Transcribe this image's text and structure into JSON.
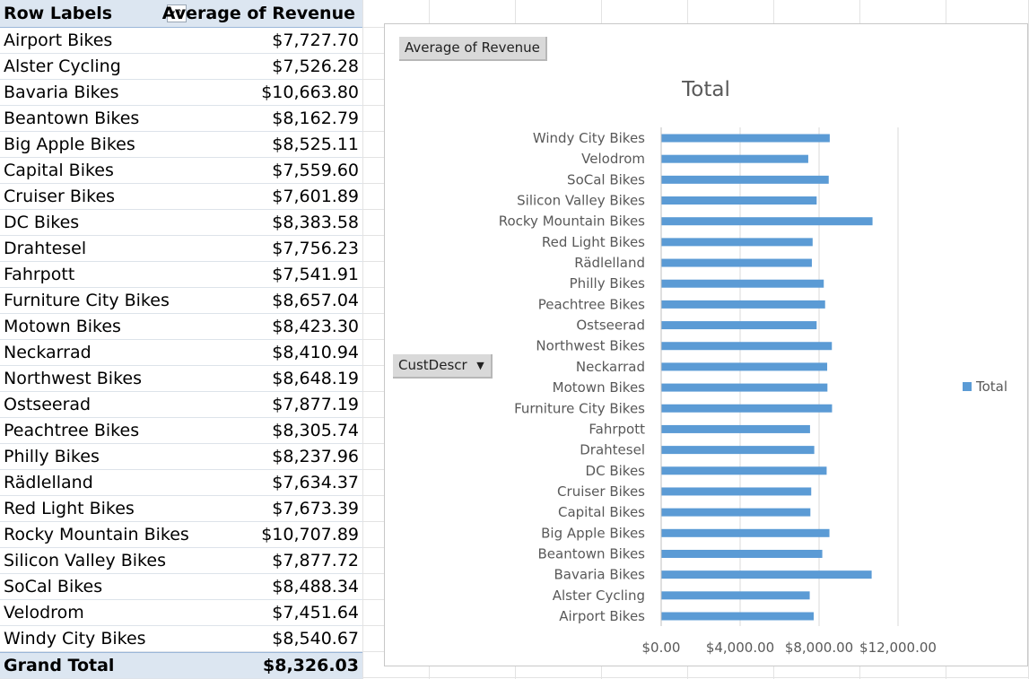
{
  "pivot": {
    "header_row_label": "Row Labels",
    "header_value_label": "Average of Revenue",
    "rows": [
      {
        "label": "Airport Bikes",
        "value": "$7,727.70"
      },
      {
        "label": "Alster Cycling",
        "value": "$7,526.28"
      },
      {
        "label": "Bavaria Bikes",
        "value": "$10,663.80"
      },
      {
        "label": "Beantown Bikes",
        "value": "$8,162.79"
      },
      {
        "label": "Big Apple Bikes",
        "value": "$8,525.11"
      },
      {
        "label": "Capital Bikes",
        "value": "$7,559.60"
      },
      {
        "label": "Cruiser Bikes",
        "value": "$7,601.89"
      },
      {
        "label": "DC Bikes",
        "value": "$8,383.58"
      },
      {
        "label": "Drahtesel",
        "value": "$7,756.23"
      },
      {
        "label": "Fahrpott",
        "value": "$7,541.91"
      },
      {
        "label": "Furniture City Bikes",
        "value": "$8,657.04"
      },
      {
        "label": "Motown Bikes",
        "value": "$8,423.30"
      },
      {
        "label": "Neckarrad",
        "value": "$8,410.94"
      },
      {
        "label": "Northwest Bikes",
        "value": "$8,648.19"
      },
      {
        "label": "Ostseerad",
        "value": "$7,877.19"
      },
      {
        "label": "Peachtree Bikes",
        "value": "$8,305.74"
      },
      {
        "label": "Philly Bikes",
        "value": "$8,237.96"
      },
      {
        "label": "Rädlelland",
        "value": "$7,634.37"
      },
      {
        "label": "Red Light Bikes",
        "value": "$7,673.39"
      },
      {
        "label": "Rocky Mountain Bikes",
        "value": "$10,707.89"
      },
      {
        "label": "Silicon Valley Bikes",
        "value": "$7,877.72"
      },
      {
        "label": "SoCal Bikes",
        "value": "$8,488.34"
      },
      {
        "label": "Velodrom",
        "value": "$7,451.64"
      },
      {
        "label": "Windy City Bikes",
        "value": "$8,540.67"
      }
    ],
    "grand_total_label": "Grand Total",
    "grand_total_value": "$8,326.03"
  },
  "chart_buttons": {
    "value_field": "Average of Revenue",
    "axis_field": "CustDescr"
  },
  "chart_data": {
    "type": "bar",
    "orientation": "horizontal",
    "title": "Total",
    "categories": [
      "Airport Bikes",
      "Alster Cycling",
      "Bavaria Bikes",
      "Beantown Bikes",
      "Big Apple Bikes",
      "Capital Bikes",
      "Cruiser Bikes",
      "DC Bikes",
      "Drahtesel",
      "Fahrpott",
      "Furniture City Bikes",
      "Motown Bikes",
      "Neckarrad",
      "Northwest Bikes",
      "Ostseerad",
      "Peachtree Bikes",
      "Philly Bikes",
      "Rädlelland",
      "Red Light Bikes",
      "Rocky Mountain Bikes",
      "Silicon Valley Bikes",
      "SoCal Bikes",
      "Velodrom",
      "Windy City Bikes"
    ],
    "series": [
      {
        "name": "Total",
        "values": [
          7727.7,
          7526.28,
          10663.8,
          8162.79,
          8525.11,
          7559.6,
          7601.89,
          8383.58,
          7756.23,
          7541.91,
          8657.04,
          8423.3,
          8410.94,
          8648.19,
          7877.19,
          8305.74,
          8237.96,
          7634.37,
          7673.39,
          10707.89,
          7877.72,
          8488.34,
          7451.64,
          8540.67
        ]
      }
    ],
    "xlim": [
      0,
      12000
    ],
    "x_ticks": [
      "$0.00",
      "$4,000.00",
      "$8,000.00",
      "$12,000.00"
    ],
    "grid": true,
    "legend_position": "right",
    "bar_color": "#5b9bd5"
  }
}
